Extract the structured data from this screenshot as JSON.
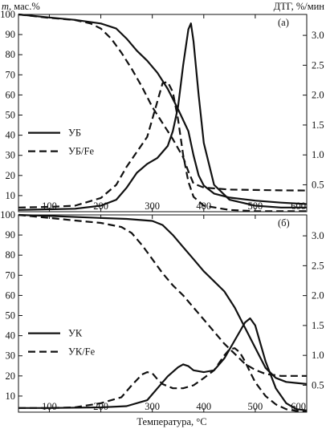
{
  "figure": {
    "y_left_label_var": "m",
    "y_left_label_unit": ", мас.%",
    "y_right_label": "ДТГ, %/мин",
    "x_label": "Температура, °C"
  },
  "chart_data": [
    {
      "type": "line",
      "panel_label": "(а)",
      "xlim": [
        40,
        600
      ],
      "ylim_left": [
        2,
        100
      ],
      "ylim_right": [
        0.05,
        3.35
      ],
      "x_ticks": [
        100,
        200,
        300,
        400,
        500,
        600
      ],
      "y_left_ticks": [
        10,
        20,
        30,
        40,
        50,
        60,
        70,
        80,
        90,
        100
      ],
      "y_right_ticks": [
        0.5,
        1.0,
        1.5,
        2.0,
        2.5,
        3.0
      ],
      "legend_position": "left-middle",
      "series": [
        {
          "name": "УБ",
          "style": "solid",
          "axis": "left",
          "kind": "mass",
          "x": [
            40,
            100,
            150,
            200,
            230,
            250,
            270,
            290,
            310,
            330,
            350,
            370,
            380,
            390,
            400,
            420,
            450,
            500,
            550,
            600
          ],
          "y": [
            100,
            98.5,
            97.3,
            95.5,
            93,
            88,
            82,
            77,
            71,
            63,
            53,
            42,
            30,
            20,
            15,
            11,
            9,
            7.5,
            6.5,
            5.8
          ]
        },
        {
          "name": "УБ/Fe",
          "style": "dashed",
          "axis": "left",
          "kind": "mass",
          "x": [
            40,
            100,
            150,
            180,
            200,
            220,
            240,
            260,
            280,
            300,
            320,
            340,
            360,
            370,
            380,
            400,
            450,
            500,
            550,
            600
          ],
          "y": [
            100,
            98.3,
            97.2,
            95.5,
            93,
            88,
            81,
            73,
            64,
            54,
            46,
            38,
            29,
            22,
            16,
            14,
            13,
            12.8,
            12.6,
            12.5
          ]
        },
        {
          "name": "УБ",
          "style": "solid",
          "axis": "right",
          "kind": "dtg",
          "x": [
            40,
            100,
            150,
            200,
            230,
            250,
            270,
            290,
            310,
            330,
            340,
            350,
            360,
            370,
            375,
            380,
            390,
            400,
            420,
            450,
            500,
            550,
            600
          ],
          "y": [
            0.08,
            0.09,
            0.1,
            0.15,
            0.25,
            0.45,
            0.7,
            0.85,
            0.95,
            1.15,
            1.4,
            1.8,
            2.5,
            3.1,
            3.2,
            2.9,
            2.0,
            1.2,
            0.5,
            0.25,
            0.15,
            0.12,
            0.12
          ]
        },
        {
          "name": "УБ/Fe",
          "style": "dashed",
          "axis": "right",
          "kind": "dtg",
          "x": [
            40,
            100,
            150,
            200,
            230,
            250,
            270,
            290,
            300,
            310,
            320,
            330,
            340,
            350,
            360,
            370,
            380,
            400,
            450,
            500,
            550,
            600
          ],
          "y": [
            0.12,
            0.13,
            0.15,
            0.28,
            0.5,
            0.8,
            1.05,
            1.3,
            1.6,
            1.9,
            2.2,
            2.22,
            2.05,
            1.6,
            1.0,
            0.55,
            0.3,
            0.15,
            0.08,
            0.06,
            0.06,
            0.06
          ]
        }
      ]
    },
    {
      "type": "line",
      "panel_label": "(б)",
      "xlim": [
        40,
        600
      ],
      "ylim_left": [
        2,
        100
      ],
      "ylim_right": [
        0.05,
        3.35
      ],
      "x_ticks": [
        100,
        200,
        300,
        400,
        500,
        600
      ],
      "y_left_ticks": [
        10,
        20,
        30,
        40,
        50,
        60,
        70,
        80,
        90,
        100
      ],
      "y_right_ticks": [
        0.5,
        1.0,
        1.5,
        2.0,
        2.5,
        3.0
      ],
      "legend_position": "left-middle",
      "series": [
        {
          "name": "УК",
          "style": "solid",
          "axis": "left",
          "kind": "mass",
          "x": [
            40,
            100,
            200,
            250,
            300,
            320,
            340,
            360,
            380,
            400,
            420,
            440,
            460,
            480,
            500,
            520,
            540,
            560,
            580,
            600
          ],
          "y": [
            100,
            99.5,
            98.5,
            98,
            97,
            95,
            90,
            84,
            78,
            72,
            67,
            62,
            54,
            44,
            34,
            24,
            19,
            17,
            16.5,
            16
          ]
        },
        {
          "name": "УК/Fe",
          "style": "dashed",
          "axis": "left",
          "kind": "mass",
          "x": [
            40,
            100,
            150,
            200,
            240,
            260,
            280,
            300,
            320,
            340,
            360,
            380,
            400,
            420,
            440,
            460,
            480,
            500,
            520,
            550,
            580,
            600
          ],
          "y": [
            100,
            98.5,
            97.2,
            96,
            94,
            91,
            85,
            78,
            71,
            65,
            60,
            54,
            48,
            42,
            36,
            31,
            26,
            23,
            21,
            20,
            20,
            20
          ]
        },
        {
          "name": "УК",
          "style": "solid",
          "axis": "right",
          "kind": "dtg",
          "x": [
            40,
            100,
            200,
            250,
            290,
            310,
            330,
            350,
            360,
            370,
            380,
            400,
            420,
            440,
            460,
            480,
            490,
            500,
            510,
            520,
            540,
            560,
            580,
            600
          ],
          "y": [
            0.12,
            0.12,
            0.13,
            0.15,
            0.25,
            0.45,
            0.65,
            0.8,
            0.85,
            0.82,
            0.75,
            0.72,
            0.75,
            0.95,
            1.25,
            1.55,
            1.62,
            1.5,
            1.2,
            0.9,
            0.45,
            0.2,
            0.1,
            0.08
          ]
        },
        {
          "name": "УК/Fe",
          "style": "dashed",
          "axis": "right",
          "kind": "dtg",
          "x": [
            40,
            100,
            150,
            200,
            240,
            260,
            280,
            290,
            300,
            310,
            320,
            340,
            360,
            380,
            400,
            420,
            440,
            450,
            460,
            470,
            480,
            490,
            500,
            520,
            540,
            560,
            580,
            600
          ],
          "y": [
            0.12,
            0.12,
            0.13,
            0.2,
            0.3,
            0.5,
            0.68,
            0.72,
            0.7,
            0.6,
            0.52,
            0.45,
            0.45,
            0.5,
            0.62,
            0.75,
            1.0,
            1.1,
            1.12,
            1.05,
            0.9,
            0.72,
            0.55,
            0.32,
            0.18,
            0.1,
            0.07,
            0.07
          ]
        }
      ]
    }
  ]
}
